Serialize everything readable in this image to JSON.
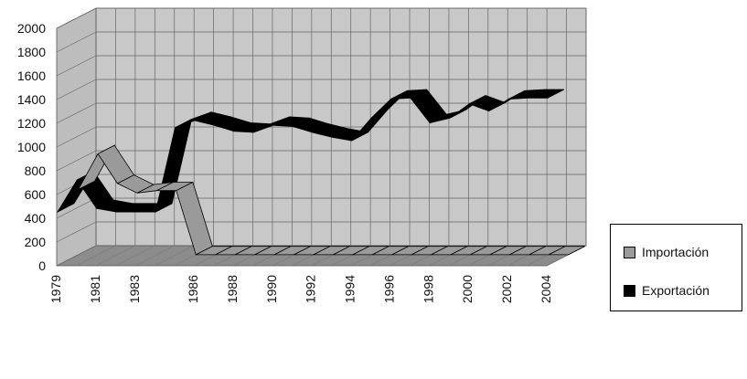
{
  "chart_data": {
    "type": "line",
    "title": "",
    "xlabel": "",
    "ylabel": "",
    "ylim": [
      0,
      2000
    ],
    "y_ticks": [
      "0",
      "200",
      "400",
      "600",
      "800",
      "1000",
      "1200",
      "1400",
      "1600",
      "1800",
      "2000"
    ],
    "x_tick_labels": [
      "1979",
      "1981",
      "1983",
      "1986",
      "1988",
      "1990",
      "1992",
      "1994",
      "1996",
      "1998",
      "2000",
      "2002",
      "2004"
    ],
    "x": [
      "1979",
      "1980",
      "1981",
      "1982",
      "1983",
      "1984",
      "1985",
      "1986",
      "1987",
      "1988",
      "1989",
      "1990",
      "1991",
      "1992",
      "1993",
      "1994",
      "1995",
      "1996",
      "1997",
      "1998",
      "1999",
      "2000",
      "2001",
      "2002",
      "2003",
      "2004"
    ],
    "series": [
      {
        "name": "Importación",
        "color": "#9a9a9a",
        "values": [
          550,
          850,
          600,
          520,
          540,
          540,
          0,
          0,
          0,
          0,
          0,
          0,
          0,
          0,
          0,
          0,
          0,
          0,
          0,
          0,
          0,
          0,
          0,
          0,
          0,
          0
        ]
      },
      {
        "name": "Exportación",
        "color": "#000000",
        "values": [
          450,
          720,
          480,
          450,
          450,
          450,
          1160,
          1220,
          1180,
          1130,
          1120,
          1180,
          1170,
          1120,
          1080,
          1050,
          1240,
          1400,
          1410,
          1200,
          1240,
          1360,
          1300,
          1400,
          1410,
          1410
        ]
      }
    ],
    "grid": true,
    "view": "3d",
    "legend_position": "right"
  }
}
